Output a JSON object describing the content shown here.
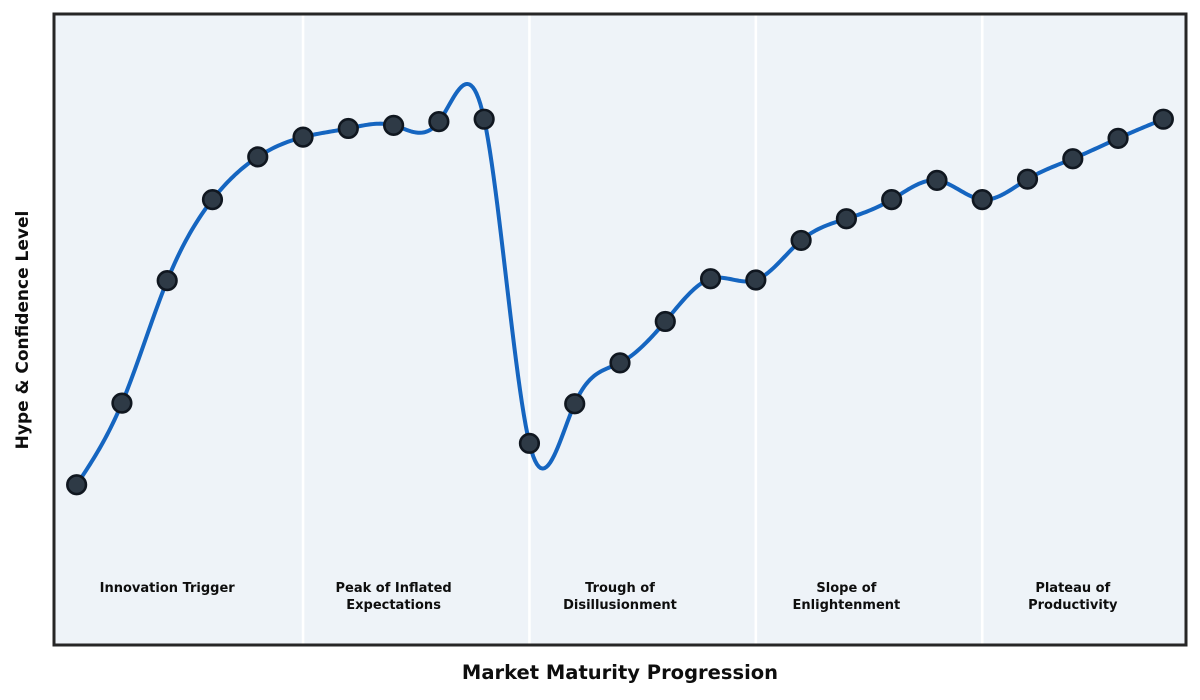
{
  "style": {
    "figure_background": "#ffffff",
    "plot_background": "#eef3f8",
    "border_color": "#262626",
    "line_color": "#1565c0",
    "marker_fill": "#2e3a46",
    "marker_stroke": "#101720",
    "separator_color": "#ffffff",
    "text_color": "#0e0e0e"
  },
  "chart_data": {
    "type": "line",
    "title": "",
    "xlabel": "Market Maturity Progression",
    "ylabel": "Hype & Confidence Level",
    "curve_style": "smooth-spline",
    "markers": "circle",
    "grid": false,
    "axis_ticks": "none",
    "legend": "none",
    "xlim": [
      -0.5,
      24.5
    ],
    "ylim": [
      -14,
      88
    ],
    "x": [
      0,
      1,
      2,
      3,
      4,
      5,
      6,
      7,
      8,
      9,
      10,
      11,
      12,
      13,
      14,
      15,
      16,
      17,
      18,
      19,
      20,
      21,
      22,
      23,
      24
    ],
    "values": [
      11.9,
      25.1,
      44.9,
      58,
      64.9,
      68.1,
      69.5,
      70,
      70.6,
      71,
      18.6,
      25,
      31.6,
      38.3,
      45.2,
      45,
      51.4,
      54.9,
      58,
      61.1,
      58,
      61.3,
      64.6,
      67.9,
      71
    ],
    "separators_at_x": [
      5,
      10,
      15,
      20
    ],
    "phases": [
      {
        "label": "Innovation Trigger",
        "start_index": 0,
        "end_index": 4,
        "label_center_index": 2
      },
      {
        "label": "Peak of Inflated\nExpectations",
        "start_index": 5,
        "end_index": 9,
        "label_center_index": 7
      },
      {
        "label": "Trough of\nDisillusionment",
        "start_index": 10,
        "end_index": 14,
        "label_center_index": 12
      },
      {
        "label": "Slope of\nEnlightenment",
        "start_index": 15,
        "end_index": 19,
        "label_center_index": 17
      },
      {
        "label": "Plateau of\nProductivity",
        "start_index": 20,
        "end_index": 24,
        "label_center_index": 22
      }
    ]
  }
}
